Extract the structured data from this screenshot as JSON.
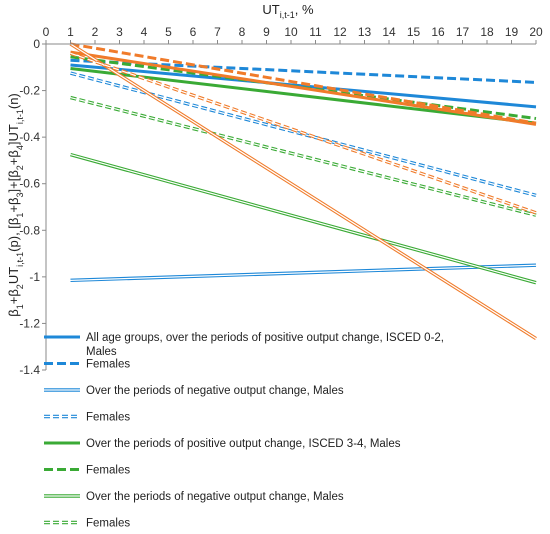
{
  "chart_data": {
    "type": "line",
    "xlabel_main": "UT",
    "xlabel_sub": "i,t-1",
    "xlabel_suffix": ", %",
    "ylabel_parts": [
      {
        "t": "β",
        "s": ""
      },
      {
        "t": "1",
        "s": "sub"
      },
      {
        "t": "+β",
        "s": ""
      },
      {
        "t": "2",
        "s": "sub"
      },
      {
        "t": "UT",
        "s": ""
      },
      {
        "t": "i,t-1",
        "s": "sub"
      },
      {
        "t": "(p), [β",
        "s": ""
      },
      {
        "t": "1",
        "s": "sub"
      },
      {
        "t": "+β",
        "s": ""
      },
      {
        "t": "3",
        "s": "sub"
      },
      {
        "t": "]+[β",
        "s": ""
      },
      {
        "t": "2",
        "s": "sub"
      },
      {
        "t": "+β",
        "s": ""
      },
      {
        "t": "4",
        "s": "sub"
      },
      {
        "t": "]UT",
        "s": ""
      },
      {
        "t": "i,t-1",
        "s": "sub"
      },
      {
        "t": "(n)",
        "s": ""
      }
    ],
    "x_ticks": [
      "0",
      "1",
      "2",
      "3",
      "4",
      "5",
      "6",
      "7",
      "8",
      "9",
      "10",
      "11",
      "12",
      "13",
      "14",
      "15",
      "16",
      "17",
      "18",
      "19",
      "20"
    ],
    "y_ticks": [
      "0",
      "-0.2",
      "-0.4",
      "-0.6",
      "-0.8",
      "-1",
      "-1.2",
      "-1.4"
    ],
    "xlim": [
      0,
      20
    ],
    "ylim": [
      -1.4,
      0
    ],
    "grid": false,
    "legend_position": "bottom-left",
    "series": [
      {
        "name": "All age groups, over the periods of positive output change, ISCED 0-2, Males",
        "color": "#1e88d8",
        "style": "solid-thick",
        "x": [
          1,
          20
        ],
        "y": [
          -0.09,
          -0.27
        ]
      },
      {
        "name": "Females",
        "color": "#1e88d8",
        "style": "dashed-thick",
        "x": [
          1,
          20
        ],
        "y": [
          -0.07,
          -0.165
        ]
      },
      {
        "name": "Over the periods of negative output change, Males",
        "color": "#1e88d8",
        "style": "double",
        "x": [
          1,
          20
        ],
        "y": [
          -1.015,
          -0.95
        ]
      },
      {
        "name": "Females",
        "color": "#1e88d8",
        "style": "double-dashed",
        "x": [
          1,
          20
        ],
        "y": [
          -0.125,
          -0.65
        ]
      },
      {
        "name": "Over the periods of positive output change, ISCED 3-4, Males",
        "color": "#3aaa35",
        "style": "solid-thick",
        "x": [
          1,
          20
        ],
        "y": [
          -0.105,
          -0.34
        ]
      },
      {
        "name": "Females",
        "color": "#3aaa35",
        "style": "dashed-thick",
        "x": [
          1,
          20
        ],
        "y": [
          -0.055,
          -0.32
        ]
      },
      {
        "name": "Over the periods of negative output change, Males",
        "color": "#3aaa35",
        "style": "double",
        "x": [
          1,
          20
        ],
        "y": [
          -0.475,
          -1.025
        ]
      },
      {
        "name": "Females",
        "color": "#3aaa35",
        "style": "double-dashed",
        "x": [
          1,
          20
        ],
        "y": [
          -0.23,
          -0.735
        ]
      },
      {
        "name": "",
        "color": "#f07b2a",
        "style": "solid-thick",
        "x": [
          1,
          20
        ],
        "y": [
          -0.035,
          -0.345
        ]
      },
      {
        "name": "",
        "color": "#f07b2a",
        "style": "dashed-thick",
        "x": [
          1,
          20
        ],
        "y": [
          0.0,
          -0.34
        ]
      },
      {
        "name": "",
        "color": "#f07b2a",
        "style": "double",
        "x": [
          1,
          20
        ],
        "y": [
          0.0,
          -1.265
        ]
      },
      {
        "name": "",
        "color": "#f07b2a",
        "style": "double-dashed",
        "x": [
          1,
          20
        ],
        "y": [
          -0.04,
          -0.725
        ]
      }
    ]
  }
}
